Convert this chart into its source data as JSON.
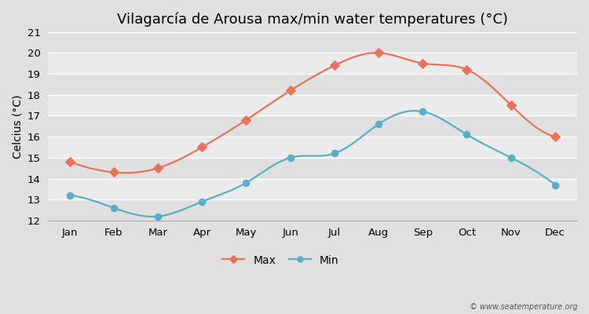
{
  "title": "Vilagarcía de Arousa max/min water temperatures (°C)",
  "ylabel": "Celcius (°C)",
  "months": [
    "Jan",
    "Feb",
    "Mar",
    "Apr",
    "May",
    "Jun",
    "Jul",
    "Aug",
    "Sep",
    "Oct",
    "Nov",
    "Dec"
  ],
  "max_temps": [
    14.8,
    14.3,
    14.5,
    15.5,
    16.8,
    18.2,
    19.4,
    20.0,
    19.5,
    19.2,
    17.5,
    16.0
  ],
  "min_temps": [
    13.2,
    12.6,
    12.2,
    12.9,
    13.8,
    15.0,
    15.2,
    16.6,
    17.2,
    16.1,
    15.0,
    13.7
  ],
  "max_color": "#e8735a",
  "min_color": "#5aafc8",
  "bg_color": "#e0e0e0",
  "plot_bg_color_light": "#ebebeb",
  "plot_bg_color_dark": "#e0e0e0",
  "grid_color": "#ffffff",
  "ylim_min": 12,
  "ylim_max": 21,
  "yticks": [
    12,
    13,
    14,
    15,
    16,
    17,
    18,
    19,
    20,
    21
  ],
  "watermark": "© www.seatemperature.org",
  "title_fontsize": 13,
  "axis_fontsize": 10,
  "tick_fontsize": 9.5
}
